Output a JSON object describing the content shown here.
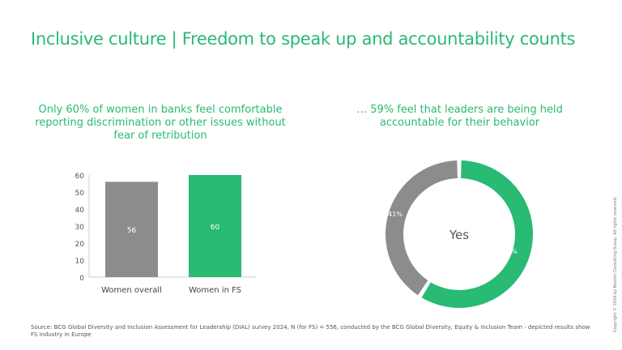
{
  "title": "Inclusive culture | Freedom to speak up and accountability counts",
  "left_subtitle": "Only 60% of women in banks feel comfortable reporting discrimination or other issues without fear of retribution",
  "right_subtitle": "… 59% feel that leaders are being held accountable for their behavior",
  "source": "Source: BCG Global Diversity and Inclusion Assessment for Leadership (DIAL) survey 2024, N (for FS) = 556, conducted by the BCG Global Diversity, Equity & Inclusion Team - depicted results show FS industry in Europe",
  "copyright": "Copyright © 2024 by Boston Consulting Group. All rights reserved.",
  "colors": {
    "accent": "#29ba74",
    "gray": "#8c8c8c"
  },
  "chart_data": [
    {
      "type": "bar",
      "categories": [
        "Women overall",
        "Women in FS"
      ],
      "values": [
        56,
        60
      ],
      "data_labels": [
        "56",
        "60"
      ],
      "colors": [
        "#8c8c8c",
        "#29ba74"
      ],
      "ylim": [
        0,
        60
      ],
      "yticks": [
        0,
        10,
        20,
        30,
        40,
        50,
        60
      ],
      "grid": false
    },
    {
      "type": "pie",
      "donut": true,
      "center_label": "Yes",
      "slices": [
        {
          "label": "59%",
          "value": 59,
          "color": "#29ba74"
        },
        {
          "label": "41%",
          "value": 41,
          "color": "#8c8c8c"
        }
      ]
    }
  ]
}
